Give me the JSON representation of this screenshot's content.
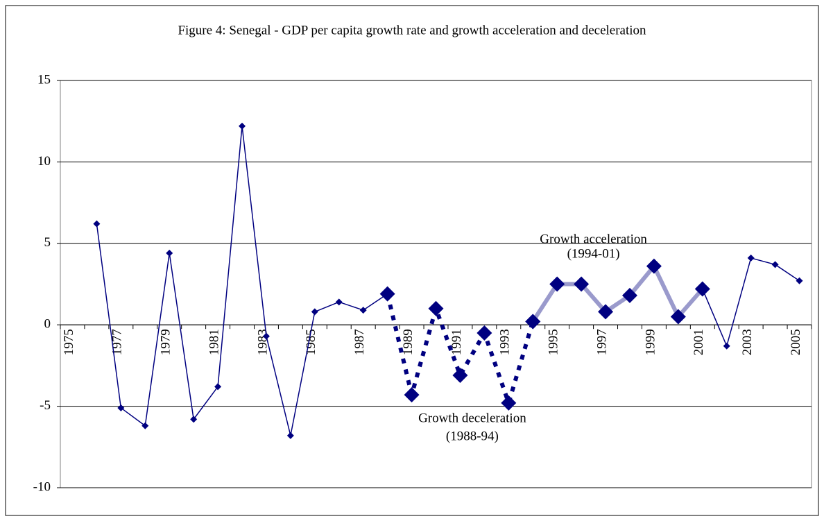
{
  "chart_data": {
    "type": "line",
    "title": "Figure 4: Senegal - GDP per capita growth rate and growth acceleration and deceleration",
    "categories": [
      "1975",
      null,
      "1977",
      null,
      "1979",
      null,
      "1981",
      null,
      "1983",
      null,
      "1985",
      null,
      "1987",
      null,
      "1989",
      null,
      "1991",
      null,
      "1993",
      null,
      "1995",
      null,
      "1997",
      null,
      "1999",
      null,
      "2001",
      null,
      "2003",
      null,
      "2005"
    ],
    "series": [
      {
        "color": "#000080",
        "line_style": "solid",
        "marker_size": "small",
        "values": [
          null,
          6.2,
          -5.1,
          -6.2,
          4.4,
          -5.8,
          -3.8,
          12.2,
          -0.7,
          -6.8,
          0.8,
          1.4,
          0.9,
          1.9,
          null,
          null,
          null,
          null,
          null,
          null,
          null,
          null,
          null,
          null,
          null,
          null,
          2.2,
          -1.3,
          4.1,
          3.7,
          2.7
        ]
      },
      {
        "color": "#000080",
        "line_style": "dotted",
        "marker_size": "large",
        "values": [
          null,
          null,
          null,
          null,
          null,
          null,
          null,
          null,
          null,
          null,
          null,
          null,
          null,
          1.9,
          -4.3,
          1.0,
          -3.1,
          -0.5,
          -4.8,
          0.2,
          null,
          null,
          null,
          null,
          null,
          null,
          null,
          null,
          null,
          null,
          null
        ]
      },
      {
        "color": "#9a9acc",
        "line_style": "solid",
        "marker_size": "large",
        "values": [
          null,
          null,
          null,
          null,
          null,
          null,
          null,
          null,
          null,
          null,
          null,
          null,
          null,
          null,
          null,
          null,
          null,
          null,
          null,
          0.2,
          2.5,
          2.5,
          0.8,
          1.8,
          3.6,
          0.5,
          2.2,
          null,
          null,
          null,
          null
        ]
      }
    ],
    "ylim": [
      -10,
      15
    ],
    "yticks": [
      -10,
      -5,
      0,
      5,
      10,
      15
    ],
    "grid": true,
    "annotations": [
      {
        "text": "Growth acceleration",
        "x": 1996.5,
        "y": 5.2
      },
      {
        "text": "(1994-01)",
        "x": 1996.5,
        "y": 4.3
      },
      {
        "text": "Growth deceleration",
        "x": 1991.5,
        "y": -5.8
      },
      {
        "text": "(1988-94)",
        "x": 1991.5,
        "y": -6.9
      }
    ]
  }
}
